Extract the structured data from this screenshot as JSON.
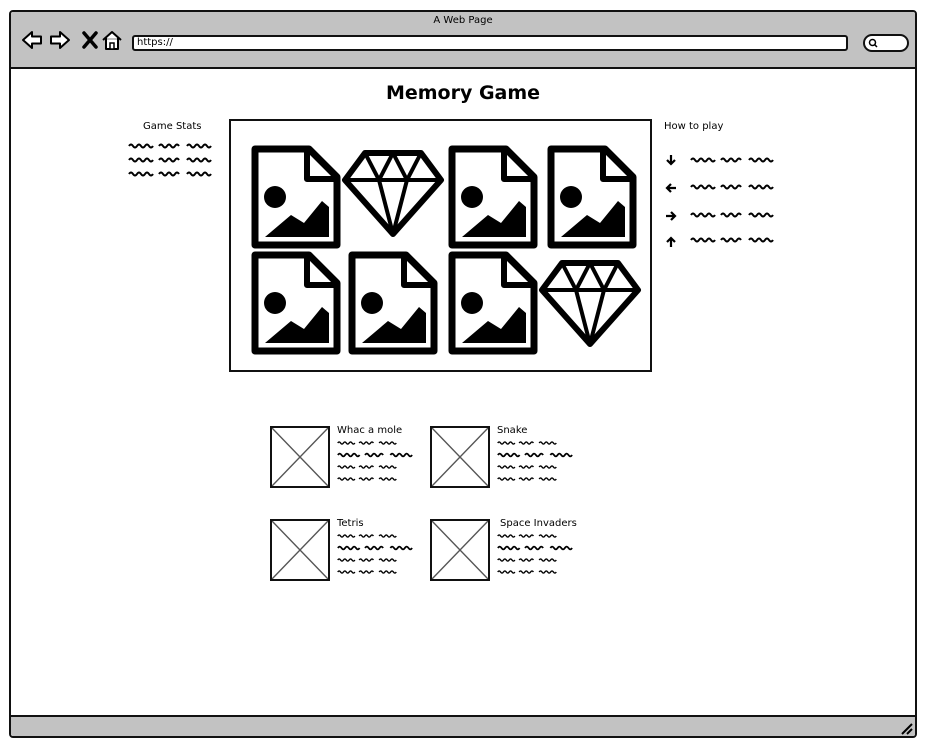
{
  "browser": {
    "window_title": "A Web Page",
    "address": "https://"
  },
  "page": {
    "title": "Memory Game"
  },
  "stats": {
    "heading": "Game Stats"
  },
  "how_to_play": {
    "heading": "How to play",
    "rows": [
      {
        "icon": "arrow-down-icon"
      },
      {
        "icon": "arrow-left-icon"
      },
      {
        "icon": "arrow-right-icon"
      },
      {
        "icon": "arrow-up-icon"
      }
    ]
  },
  "board": {
    "cards": [
      {
        "icon": "image-file-icon"
      },
      {
        "icon": "diamond-icon"
      },
      {
        "icon": "image-file-icon"
      },
      {
        "icon": "image-file-icon"
      },
      {
        "icon": "image-file-icon"
      },
      {
        "icon": "image-file-icon"
      },
      {
        "icon": "image-file-icon"
      },
      {
        "icon": "diamond-icon"
      }
    ]
  },
  "other_games": [
    {
      "name": "Whac a mole"
    },
    {
      "name": "Snake"
    },
    {
      "name": "Tetris"
    },
    {
      "name": "Space Invaders"
    }
  ]
}
